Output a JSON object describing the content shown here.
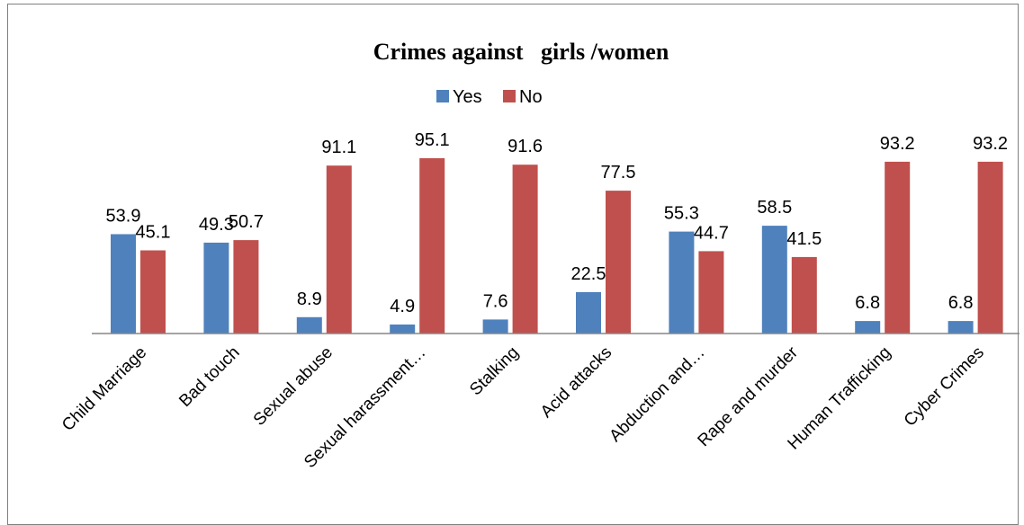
{
  "chart_data": {
    "type": "bar",
    "title": "Crimes against   girls /women",
    "categories": [
      "Child  Marriage",
      "Bad  touch",
      "Sexual abuse",
      "Sexual  harassment…",
      "Stalking",
      "Acid attacks",
      "Abduction and…",
      "Rape and murder",
      "Human Trafficking",
      "Cyber Crimes"
    ],
    "series": [
      {
        "name": "Yes",
        "color": "#4f81bd",
        "values": [
          53.9,
          49.3,
          8.9,
          4.9,
          7.6,
          22.5,
          55.3,
          58.5,
          6.8,
          6.8
        ]
      },
      {
        "name": "No",
        "color": "#c0504d",
        "values": [
          45.1,
          50.7,
          91.1,
          95.1,
          91.6,
          77.5,
          44.7,
          41.5,
          93.2,
          93.2
        ]
      }
    ],
    "ylim": [
      0,
      100
    ],
    "legend": "top-center",
    "grid": false,
    "xlabel": "",
    "ylabel": ""
  }
}
